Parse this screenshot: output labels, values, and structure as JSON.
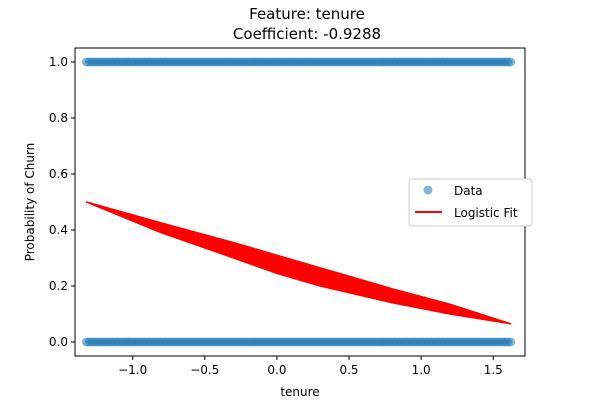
{
  "chart_data": {
    "type": "scatter",
    "title": "Feature: tenure",
    "subtitle": "Coefficient: -0.9288",
    "xlabel": "tenure",
    "ylabel": "Probability of Churn",
    "xlim": [
      -1.4,
      1.72
    ],
    "ylim": [
      -0.05,
      1.05
    ],
    "xticks": [
      -1.0,
      -0.5,
      0.0,
      0.5,
      1.0,
      1.5
    ],
    "xtick_labels": [
      "−1.0",
      "−0.5",
      "0.0",
      "0.5",
      "1.0",
      "1.5"
    ],
    "yticks": [
      0.0,
      0.2,
      0.4,
      0.6,
      0.8,
      1.0
    ],
    "ytick_labels": [
      "0.0",
      "0.2",
      "0.4",
      "0.6",
      "0.8",
      "1.0"
    ],
    "legend_placement": "center-right",
    "grid": false,
    "series": [
      {
        "name": "Data",
        "kind": "scatter",
        "color": "#1f77b4",
        "x_range": [
          -1.32,
          1.62
        ],
        "y_values": [
          0,
          1
        ]
      },
      {
        "name": "Logistic Fit",
        "kind": "line",
        "color": "#ff0000",
        "upper_curve": {
          "x": [
            -1.32,
            -0.8,
            -0.3,
            0.0,
            0.3,
            0.8,
            1.2,
            1.62
          ],
          "y": [
            0.5,
            0.425,
            0.355,
            0.31,
            0.265,
            0.19,
            0.135,
            0.065
          ]
        },
        "lower_curve": {
          "x": [
            -1.32,
            -0.8,
            -0.3,
            0.0,
            0.3,
            0.8,
            1.2,
            1.62
          ],
          "y": [
            0.5,
            0.39,
            0.3,
            0.245,
            0.2,
            0.14,
            0.1,
            0.065
          ]
        }
      }
    ]
  }
}
